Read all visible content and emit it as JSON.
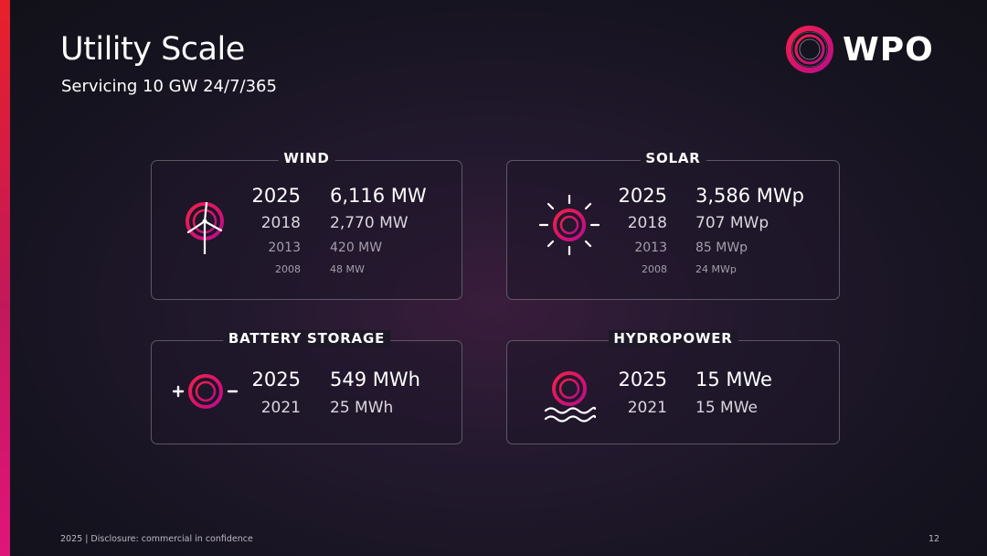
{
  "slide": {
    "title": "Utility Scale",
    "subtitle": "Servicing 10 GW 24/7/365",
    "logo_text": "WPO",
    "footer": "2025 | Disclosure: commercial in confidence",
    "page_number": "12"
  },
  "colors": {
    "accent_red": "#e8202a",
    "accent_magenta": "#e0157a",
    "background": "#15131f"
  },
  "cards": {
    "wind": {
      "title": "WIND",
      "icon": "wind-turbine-icon",
      "rows": [
        {
          "year": "2025",
          "value": "6,116 MW"
        },
        {
          "year": "2018",
          "value": "2,770 MW"
        },
        {
          "year": "2013",
          "value": "420 MW"
        },
        {
          "year": "2008",
          "value": "48 MW"
        }
      ]
    },
    "solar": {
      "title": "SOLAR",
      "icon": "sun-icon",
      "rows": [
        {
          "year": "2025",
          "value": "3,586 MWp"
        },
        {
          "year": "2018",
          "value": "707 MWp"
        },
        {
          "year": "2013",
          "value": "85 MWp"
        },
        {
          "year": "2008",
          "value": "24 MWp"
        }
      ]
    },
    "battery": {
      "title": "BATTERY STORAGE",
      "icon": "battery-icon",
      "rows": [
        {
          "year": "2025",
          "value": "549 MWh"
        },
        {
          "year": "2021",
          "value": "25 MWh"
        }
      ]
    },
    "hydro": {
      "title": "HYDROPOWER",
      "icon": "water-wave-icon",
      "rows": [
        {
          "year": "2025",
          "value": "15 MWe"
        },
        {
          "year": "2021",
          "value": "15 MWe"
        }
      ]
    }
  }
}
